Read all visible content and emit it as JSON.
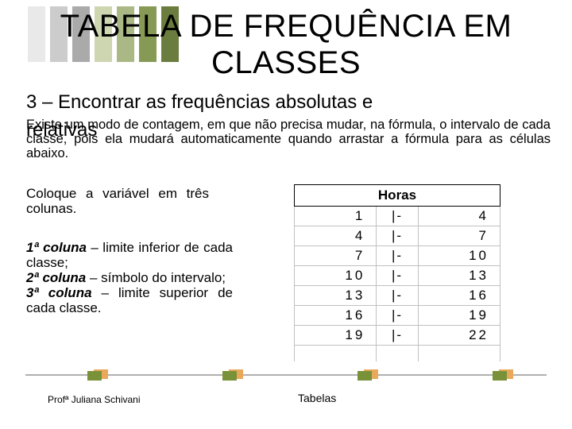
{
  "topBars": {
    "colors": [
      "#e9e9e9",
      "#cccccc",
      "#aaaaaa",
      "#cdd6b0",
      "#a9b884",
      "#879a55",
      "#6a7d3e"
    ]
  },
  "title": "TABELA DE FREQUÊNCIA EM CLASSES",
  "subtitle": "3 – Encontrar as frequências absolutas e",
  "overlayWord": "relativas",
  "bodyText": "Existe um modo de contagem, em que não precisa mudar, na fórmula, o intervalo de cada classe, pois ela mudará automaticamente quando arrastar a fórmula para as células abaixo.",
  "instruction": "Coloque a variável em três colunas.",
  "cols": {
    "c1": {
      "label": "1ª coluna",
      "text": " – limite inferior de cada classe;"
    },
    "c2": {
      "label": "2ª coluna",
      "text": " – símbolo do intervalo;"
    },
    "c3": {
      "label": "3ª coluna",
      "text": " – limite superior de cada classe."
    }
  },
  "table": {
    "header": "Horas",
    "rows": [
      {
        "a": "1",
        "s": "|-",
        "b": "4"
      },
      {
        "a": "4",
        "s": "|-",
        "b": "7"
      },
      {
        "a": "7",
        "s": "|-",
        "b": "10"
      },
      {
        "a": "10",
        "s": "|-",
        "b": "13"
      },
      {
        "a": "13",
        "s": "|-",
        "b": "16"
      },
      {
        "a": "16",
        "s": "|-",
        "b": "19"
      },
      {
        "a": "19",
        "s": "|-",
        "b": "22"
      }
    ]
  },
  "footerSquares": [
    110,
    280,
    450,
    620
  ],
  "footer": {
    "left": "Profª Juliana Schivani",
    "mid": "Tabelas"
  }
}
